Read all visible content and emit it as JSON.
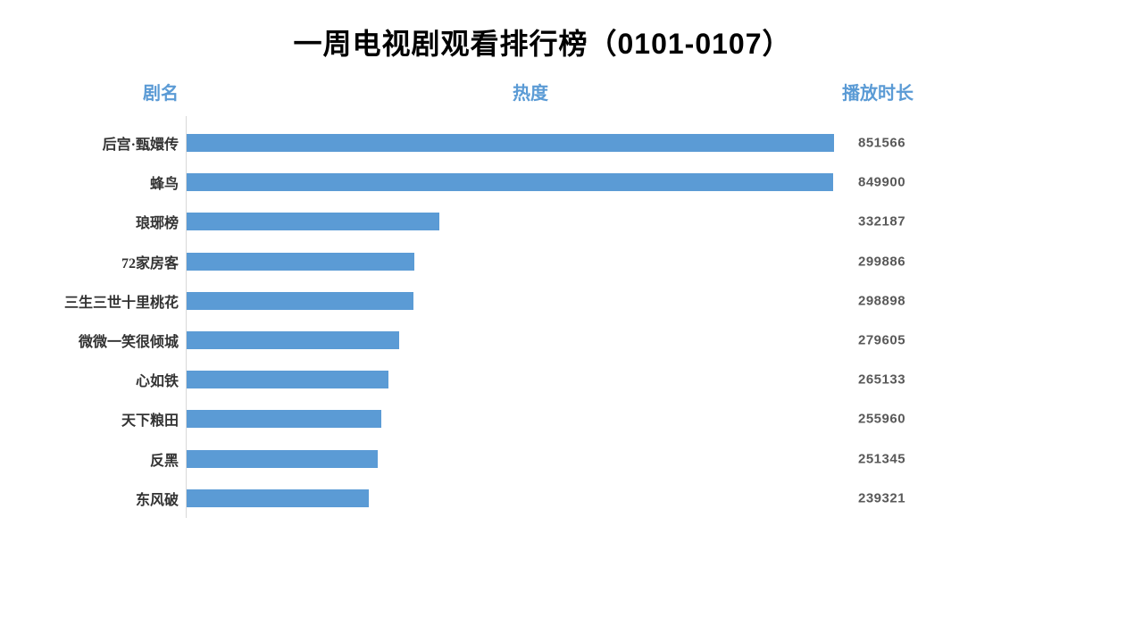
{
  "title": "一周电视剧观看排行榜（0101-0107）",
  "headers": {
    "name": "剧名",
    "heat": "热度",
    "duration": "播放时长"
  },
  "colors": {
    "bar": "#5b9bd5",
    "header_text": "#5b9bd5",
    "value_text": "#595959",
    "axis_line": "#d9d9d9",
    "title_text": "#000000"
  },
  "chart_data": {
    "type": "bar",
    "orientation": "horizontal",
    "title": "一周电视剧观看排行榜（0101-0107）",
    "xlabel": "热度",
    "ylabel": "剧名",
    "value_column_label": "播放时长",
    "categories": [
      "后宫·甄嬛传",
      "蜂鸟",
      "琅琊榜",
      "72家房客",
      "三生三世十里桃花",
      "微微一笑很倾城",
      "心如铁",
      "天下粮田",
      "反黑",
      "东风破"
    ],
    "values": [
      851566,
      849900,
      332187,
      299886,
      298898,
      279605,
      265133,
      255960,
      251345,
      239321
    ],
    "xlim": [
      0,
      851566
    ],
    "grid": false,
    "legend": false
  }
}
